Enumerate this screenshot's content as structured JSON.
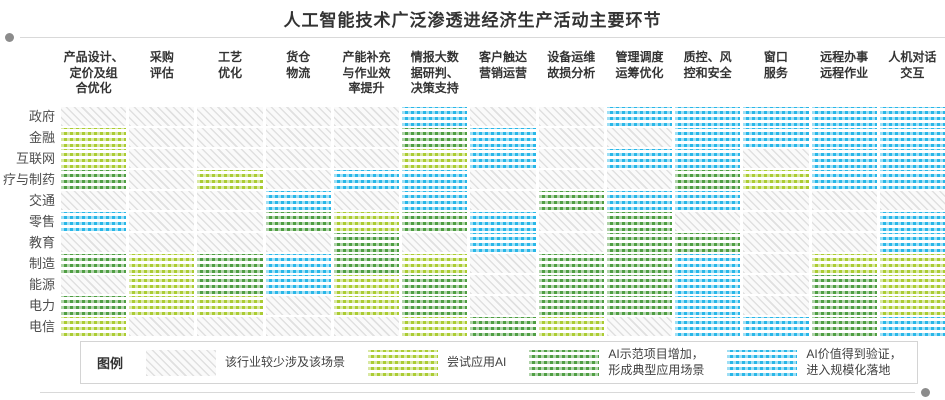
{
  "title": "人工智能技术广泛渗透进经济生产活动主要环节",
  "colors": {
    "title_text": "#333333",
    "header_text": "#333333",
    "row_label_text": "#4d4d4d",
    "rule_gray": "#d9d9d9",
    "dot_gray": "#8c8c8c",
    "hatch_gray": "#e0e0e0",
    "trial_green": "#abcc33",
    "demo_green": "#4f9e43",
    "scale_blue": "#29b7e8"
  },
  "legend": {
    "label": "图例",
    "items": [
      {
        "key": "none",
        "label": "该行业较少涉及该场景"
      },
      {
        "key": "trial",
        "label": "尝试应用AI"
      },
      {
        "key": "demo",
        "label": "AI示范项目增加，\n形成典型应用场景"
      },
      {
        "key": "scale",
        "label": "AI价值得到验证，\n进入规模化落地"
      }
    ]
  },
  "chart_data": {
    "type": "heatmap",
    "title": "人工智能技术广泛渗透进经济生产活动主要环节",
    "columns": [
      "产品设计、定价及组合优化",
      "采购评估",
      "工艺优化",
      "货仓物流",
      "产能补充与作业效率提升",
      "情报大数据研判、决策支持",
      "客户触达营销运营",
      "设备运维故损分析",
      "管理调度运筹优化",
      "质控、风控和安全",
      "窗口服务",
      "远程办事远程作业",
      "人机对话交互"
    ],
    "columns_display": [
      "产品设计、\n定价及组\n合优化",
      "采购\n评估",
      "工艺\n优化",
      "货仓\n物流",
      "产能补充\n与作业效\n率提升",
      "情报大数\n据研判、\n决策支持",
      "客户触达\n营销运营",
      "设备运维\n故损分析",
      "管理调度\n运筹优化",
      "质控、风\n控和安全",
      "窗口\n服务",
      "远程办事\n远程作业",
      "人机对话\n交互"
    ],
    "rows": [
      "政府",
      "金融",
      "互联网",
      "疗与制药",
      "交通",
      "零售",
      "教育",
      "制造",
      "能源",
      "电力",
      "电信"
    ],
    "levels": {
      "none": "该行业较少涉及该场景",
      "trial": "尝试应用AI",
      "demo": "AI示范项目增加，形成典型应用场景",
      "scale": "AI价值得到验证，进入规模化落地"
    },
    "cells": [
      [
        "none",
        "none",
        "none",
        "none",
        "none",
        "scale",
        "none",
        "none",
        "scale",
        "scale",
        "scale",
        "scale",
        "scale"
      ],
      [
        "trial",
        "none",
        "none",
        "none",
        "none",
        "demo",
        "scale",
        "none",
        "none",
        "scale",
        "scale",
        "scale",
        "scale"
      ],
      [
        "trial",
        "none",
        "none",
        "none",
        "none",
        "trial",
        "scale",
        "none",
        "scale",
        "scale",
        "none",
        "scale",
        "scale"
      ],
      [
        "demo",
        "none",
        "trial",
        "none",
        "scale",
        "scale",
        "none",
        "none",
        "none",
        "demo",
        "trial",
        "scale",
        "scale"
      ],
      [
        "none",
        "none",
        "none",
        "scale",
        "none",
        "scale",
        "none",
        "demo",
        "scale",
        "scale",
        "none",
        "none",
        "none"
      ],
      [
        "scale",
        "none",
        "none",
        "demo",
        "trial",
        "demo",
        "scale",
        "none",
        "demo",
        "none",
        "none",
        "none",
        "scale"
      ],
      [
        "none",
        "none",
        "none",
        "none",
        "demo",
        "none",
        "scale",
        "none",
        "demo",
        "demo",
        "none",
        "none",
        "scale"
      ],
      [
        "demo",
        "trial",
        "demo",
        "scale",
        "demo",
        "trial",
        "none",
        "demo",
        "demo",
        "scale",
        "none",
        "trial",
        "trial"
      ],
      [
        "none",
        "trial",
        "demo",
        "scale",
        "trial",
        "demo",
        "none",
        "demo",
        "demo",
        "scale",
        "none",
        "demo",
        "trial"
      ],
      [
        "demo",
        "trial",
        "trial",
        "none",
        "trial",
        "demo",
        "none",
        "demo",
        "demo",
        "scale",
        "none",
        "demo",
        "trial"
      ],
      [
        "trial",
        "none",
        "none",
        "none",
        "none",
        "trial",
        "demo",
        "trial",
        "none",
        "scale",
        "scale",
        "demo",
        "scale"
      ]
    ]
  }
}
